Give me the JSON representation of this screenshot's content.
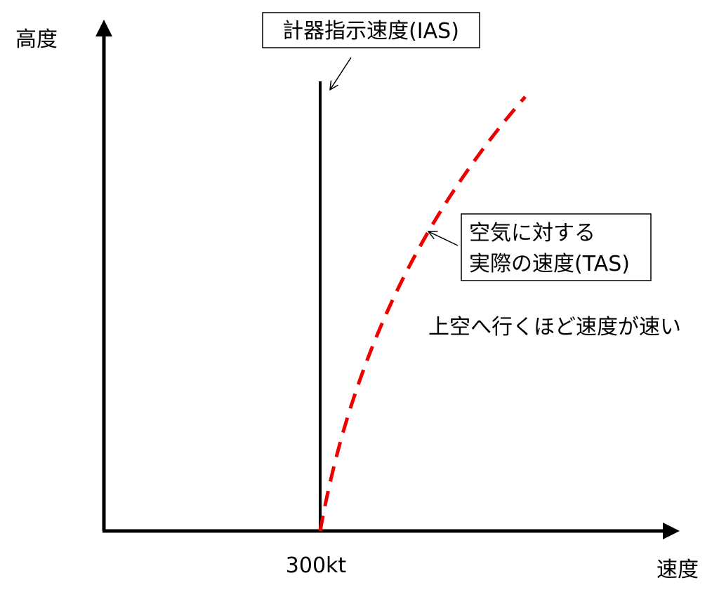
{
  "axes": {
    "y_label": "高度",
    "x_label": "速度",
    "x_marker": "300kt"
  },
  "labels": {
    "ias": "計器指示速度(IAS)",
    "tas": [
      "空気に対する",
      "実際の速度(TAS)"
    ],
    "note": "上空へ行くほど速度が速い"
  }
}
